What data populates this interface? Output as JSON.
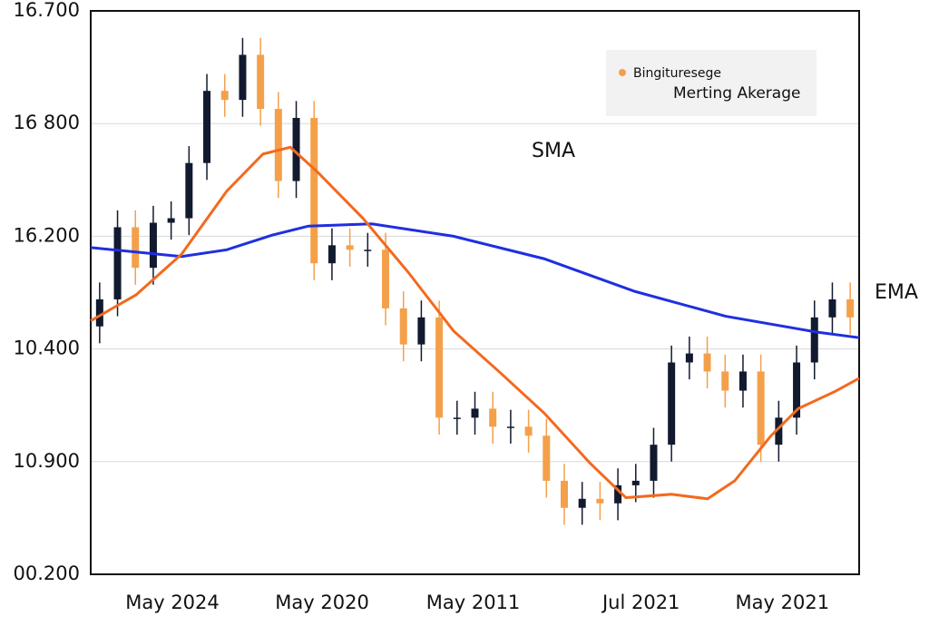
{
  "chart_data": {
    "type": "candlestick",
    "xlim": [
      0,
      43
    ],
    "xticks": [
      {
        "value": 4.57,
        "label": "May 2024"
      },
      {
        "value": 12.95,
        "label": "May 2020"
      },
      {
        "value": 21.4,
        "label": "May 2011"
      },
      {
        "value": 30.8,
        "label": "Jul 2021"
      },
      {
        "value": 38.7,
        "label": "May 2021"
      }
    ],
    "ylim": [
      0,
      5
    ],
    "yticks": [
      {
        "value": 5,
        "label": "16.700"
      },
      {
        "value": 4,
        "label": "16 800"
      },
      {
        "value": 3,
        "label": "16.200"
      },
      {
        "value": 2,
        "label": "10.400"
      },
      {
        "value": 1,
        "label": "10.900"
      },
      {
        "value": 0,
        "label": "00.200"
      }
    ],
    "grid": true,
    "up_color": "#111a2e",
    "down_color": "#f4a04a",
    "legend": {
      "labels": [
        "Bingituresege",
        "Merting Akerage"
      ],
      "color": "#f4a04a"
    },
    "candles": {
      "open": [
        2.2,
        2.44,
        3.08,
        2.72,
        3.12,
        3.16,
        3.65,
        4.29,
        4.21,
        4.61,
        4.13,
        3.49,
        4.05,
        2.76,
        2.92,
        2.88,
        2.88,
        2.36,
        2.04,
        2.28,
        1.39,
        1.39,
        1.47,
        1.31,
        1.31,
        1.23,
        0.83,
        0.59,
        0.67,
        0.63,
        0.79,
        0.83,
        1.15,
        1.88,
        1.96,
        1.8,
        1.63,
        1.8,
        1.15,
        1.39,
        1.88,
        2.28,
        2.44
      ],
      "close": [
        2.44,
        3.08,
        2.72,
        3.12,
        3.16,
        3.65,
        4.29,
        4.21,
        4.61,
        4.13,
        3.49,
        4.05,
        2.76,
        2.92,
        2.88,
        2.88,
        2.36,
        2.04,
        2.28,
        1.39,
        1.39,
        1.47,
        1.31,
        1.31,
        1.23,
        0.83,
        0.59,
        0.67,
        0.63,
        0.79,
        0.83,
        1.15,
        1.88,
        1.96,
        1.8,
        1.63,
        1.8,
        1.15,
        1.39,
        1.88,
        2.28,
        2.44,
        2.28
      ],
      "high": [
        2.59,
        3.23,
        3.23,
        3.27,
        3.31,
        3.8,
        4.44,
        4.44,
        4.76,
        4.76,
        4.28,
        4.2,
        4.2,
        3.07,
        3.07,
        3.03,
        3.03,
        2.51,
        2.43,
        2.43,
        1.54,
        1.62,
        1.62,
        1.46,
        1.46,
        1.38,
        0.98,
        0.82,
        0.82,
        0.94,
        0.98,
        1.3,
        2.03,
        2.11,
        2.11,
        1.95,
        1.95,
        1.95,
        1.54,
        2.03,
        2.43,
        2.59,
        2.59
      ],
      "low": [
        2.05,
        2.29,
        2.57,
        2.57,
        2.97,
        3.01,
        3.5,
        4.06,
        4.06,
        3.98,
        3.34,
        3.34,
        2.61,
        2.61,
        2.73,
        2.73,
        2.21,
        1.89,
        1.89,
        1.24,
        1.24,
        1.24,
        1.16,
        1.16,
        1.08,
        0.68,
        0.44,
        0.44,
        0.48,
        0.48,
        0.64,
        0.68,
        1.0,
        1.73,
        1.65,
        1.48,
        1.48,
        1.0,
        1.0,
        1.24,
        1.73,
        2.13,
        2.13
      ]
    },
    "series": [
      {
        "name": "SMA",
        "color": "#1f2fe0",
        "label_color": "#3a4fe0",
        "x": [
          0,
          5.08,
          7.61,
          10.15,
          12.18,
          15.74,
          20.3,
          25.38,
          30.46,
          35.53,
          40.61,
          43
        ],
        "values": [
          2.9,
          2.82,
          2.88,
          3.01,
          3.09,
          3.11,
          3.0,
          2.8,
          2.51,
          2.29,
          2.15,
          2.1
        ]
      },
      {
        "name": "EMA",
        "color": "#f26a1f",
        "label_color": "#111",
        "x": [
          0,
          2.54,
          5.08,
          7.61,
          9.64,
          11.17,
          12.69,
          15.23,
          17.77,
          20.3,
          22.84,
          25.38,
          27.92,
          29.95,
          32.49,
          34.52,
          36.04,
          38.07,
          39.59,
          41.62,
          43
        ],
        "values": [
          2.25,
          2.48,
          2.84,
          3.4,
          3.73,
          3.79,
          3.57,
          3.16,
          2.68,
          2.16,
          1.8,
          1.43,
          0.99,
          0.68,
          0.71,
          0.67,
          0.83,
          1.23,
          1.47,
          1.62,
          1.74
        ]
      }
    ]
  }
}
